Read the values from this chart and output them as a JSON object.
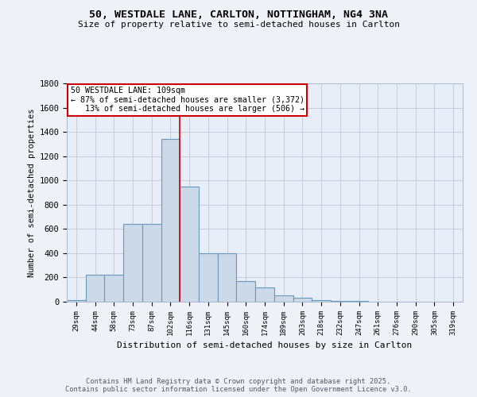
{
  "title": "50, WESTDALE LANE, CARLTON, NOTTINGHAM, NG4 3NA",
  "subtitle": "Size of property relative to semi-detached houses in Carlton",
  "xlabel": "Distribution of semi-detached houses by size in Carlton",
  "ylabel": "Number of semi-detached properties",
  "bins": [
    "29sqm",
    "44sqm",
    "58sqm",
    "73sqm",
    "87sqm",
    "102sqm",
    "116sqm",
    "131sqm",
    "145sqm",
    "160sqm",
    "174sqm",
    "189sqm",
    "203sqm",
    "218sqm",
    "232sqm",
    "247sqm",
    "261sqm",
    "276sqm",
    "290sqm",
    "305sqm",
    "319sqm"
  ],
  "values": [
    15,
    220,
    220,
    640,
    640,
    1340,
    950,
    400,
    400,
    170,
    120,
    50,
    30,
    15,
    8,
    5,
    3,
    2,
    2,
    2,
    2
  ],
  "bar_color": "#ccd9e8",
  "bar_edge_color": "#6699bb",
  "highlight_line_color": "#cc0000",
  "annotation_text": "50 WESTDALE LANE: 109sqm\n← 87% of semi-detached houses are smaller (3,372)\n   13% of semi-detached houses are larger (506) →",
  "annotation_box_color": "#cc0000",
  "ylim": [
    0,
    1800
  ],
  "yticks": [
    0,
    200,
    400,
    600,
    800,
    1000,
    1200,
    1400,
    1600,
    1800
  ],
  "footnote": "Contains HM Land Registry data © Crown copyright and database right 2025.\nContains public sector information licensed under the Open Government Licence v3.0.",
  "bg_color": "#eef2f8",
  "plot_bg_color": "#e8eef8",
  "grid_color": "#c0c8d8"
}
